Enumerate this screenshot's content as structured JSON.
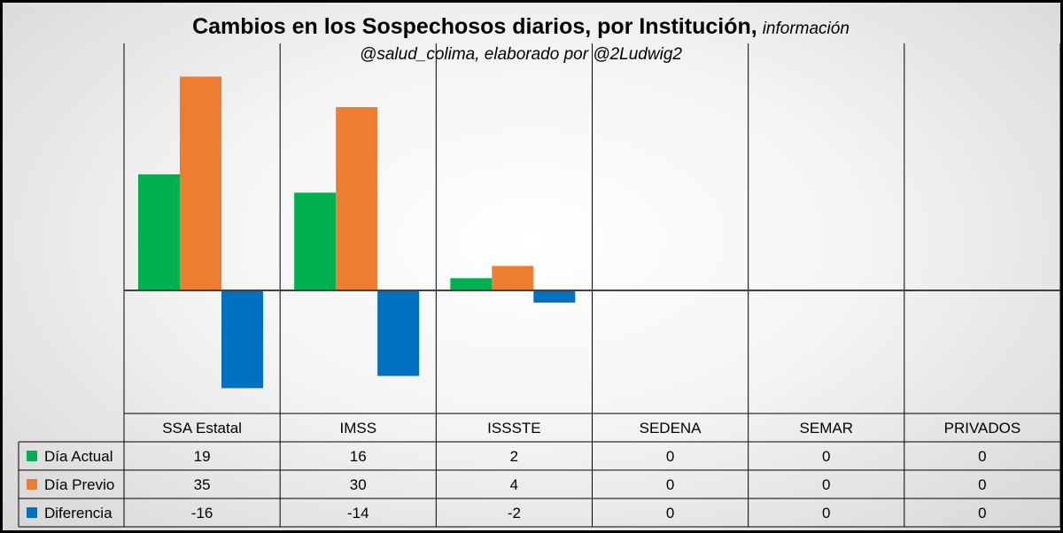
{
  "title": {
    "main": "Cambios en los Sospechosos diarios, por Institución,",
    "suffix": "información",
    "line2": "@salud_colima, elaborado por @2Ludwig2"
  },
  "chart_data": {
    "type": "bar",
    "title": "Cambios en los Sospechosos diarios, por Institución, información @salud_colima, elaborado por @2Ludwig2",
    "categories": [
      "SSA Estatal",
      "IMSS",
      "ISSSTE",
      "SEDENA",
      "SEMAR",
      "PRIVADOS"
    ],
    "series": [
      {
        "name": "Día Actual",
        "color": "#00b050",
        "values": [
          19,
          16,
          2,
          0,
          0,
          0
        ]
      },
      {
        "name": "Día Previo",
        "color": "#ed7d31",
        "values": [
          35,
          30,
          4,
          0,
          0,
          0
        ]
      },
      {
        "name": "Diferencia",
        "color": "#0070c0",
        "values": [
          -16,
          -14,
          -2,
          0,
          0,
          0
        ]
      }
    ],
    "ylim": [
      -19,
      36
    ],
    "xlabel": "",
    "ylabel": "",
    "legend": "data-table-left",
    "grid": false
  }
}
